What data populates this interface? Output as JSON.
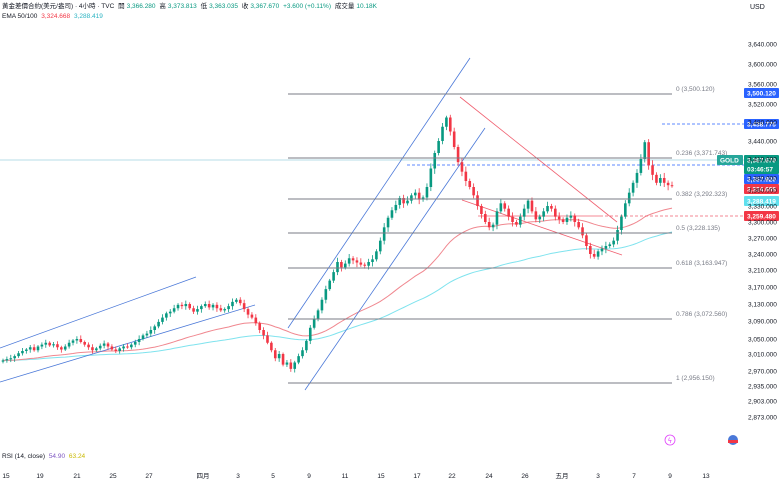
{
  "header": {
    "symbol_line": "黃金差價合約(美元/盎司) · 4小時 · TVC",
    "open_label": "開",
    "open_value": "3,366.280",
    "high_label": "高",
    "high_value": "3,373.813",
    "low_label": "低",
    "low_value": "3,363.035",
    "close_label": "收",
    "close_value": "3,367.670",
    "change": "+3.600 (+0.11%)",
    "volume_label": "成交量",
    "volume_value": "10.18K",
    "ema_label": "EMA 50/100",
    "ema50_value": "3,324.668",
    "ema100_value": "3,288.419"
  },
  "rsi": {
    "label": "RSI (14, close)",
    "value1": "54.90",
    "value2": "63.24"
  },
  "currency": "USD",
  "colors": {
    "up": "#089981",
    "down": "#f23645",
    "ema50": "#f0878f",
    "ema100": "#7fe3ee",
    "channel": "#4a78d8",
    "wedge": "#f06070",
    "fib": "#787b86"
  },
  "chart_data": {
    "type": "candlestick",
    "timeframe": "4h",
    "y_ticks": [
      "3,640.000",
      "3,600.000",
      "3,560.000",
      "3,520.000",
      "3,480.000",
      "3,440.000",
      "3,410.000",
      "3,380.000",
      "3,360.000",
      "3,330.000",
      "3,300.000",
      "3,270.000",
      "3,240.000",
      "3,210.000",
      "3,170.000",
      "3,130.000",
      "3,090.000",
      "3,050.000",
      "3,010.000",
      "2,970.000",
      "2,935.000",
      "2,903.000",
      "2,873.000"
    ],
    "x_ticks": [
      "15",
      "19",
      "21",
      "25",
      "27",
      "四月",
      "3",
      "5",
      "9",
      "11",
      "15",
      "17",
      "22",
      "24",
      "26",
      "五月",
      "3",
      "7",
      "9",
      "13"
    ],
    "price_tags": [
      {
        "label": "3,500.120",
        "value": 3500.12,
        "kind": "fib"
      },
      {
        "label": "3,438.775",
        "value": 3438.775,
        "kind": "blue"
      },
      {
        "label": "GOLD",
        "value": 3367.67,
        "kind": "symbol"
      },
      {
        "label": "3,367.670",
        "value": 3367.67,
        "kind": "price"
      },
      {
        "label": "03:46:57",
        "value": 3360,
        "kind": "timer"
      },
      {
        "label": "3,357.920",
        "value": 3357.92,
        "kind": "blue"
      },
      {
        "label": "3,324.668",
        "value": 3324.668,
        "kind": "ema50"
      },
      {
        "label": "3,288.419",
        "value": 3288.419,
        "kind": "ema100"
      },
      {
        "label": "3,259.480",
        "value": 3259.48,
        "kind": "red"
      }
    ],
    "fib_levels": [
      {
        "ratio": "0",
        "value": 3500.12,
        "label": "0 (3,500.120)"
      },
      {
        "ratio": "0.236",
        "value": 3371.743,
        "label": "0.236 (3,371.743)"
      },
      {
        "ratio": "0.382",
        "value": 3292.323,
        "label": "0.382 (3,292.323)"
      },
      {
        "ratio": "0.5",
        "value": 3228.135,
        "label": "0.5 (3,228.135)"
      },
      {
        "ratio": "0.618",
        "value": 3163.947,
        "label": "0.618 (3,163.947)"
      },
      {
        "ratio": "0.786",
        "value": 3072.56,
        "label": "0.786 (3,072.560)"
      },
      {
        "ratio": "1",
        "value": 2956.15,
        "label": "1 (2,956.150)"
      }
    ],
    "close_series": [
      2995,
      2998,
      3000,
      3005,
      3012,
      3018,
      3022,
      3028,
      3020,
      3030,
      3035,
      3040,
      3033,
      3036,
      3028,
      3022,
      3030,
      3040,
      3046,
      3050,
      3042,
      3035,
      3028,
      3020,
      3025,
      3032,
      3038,
      3030,
      3022,
      3018,
      3025,
      3030,
      3028,
      3035,
      3042,
      3050,
      3058,
      3062,
      3070,
      3078,
      3088,
      3098,
      3108,
      3112,
      3120,
      3128,
      3125,
      3130,
      3120,
      3112,
      3118,
      3125,
      3130,
      3122,
      3128,
      3120,
      3115,
      3118,
      3125,
      3135,
      3140,
      3132,
      3118,
      3105,
      3098,
      3085,
      3070,
      3058,
      3040,
      3020,
      3000,
      3010,
      2985,
      2990,
      2975,
      2990,
      3005,
      3020,
      3045,
      3075,
      3095,
      3115,
      3140,
      3165,
      3185,
      3205,
      3225,
      3215,
      3222,
      3232,
      3228,
      3224,
      3220,
      3218,
      3225,
      3230,
      3245,
      3265,
      3290,
      3308,
      3322,
      3332,
      3345,
      3335,
      3340,
      3350,
      3355,
      3342,
      3346,
      3365,
      3395,
      3420,
      3440,
      3470,
      3490,
      3460,
      3430,
      3405,
      3390,
      3375,
      3365,
      3350,
      3330,
      3315,
      3300,
      3290,
      3295,
      3320,
      3335,
      3325,
      3310,
      3300,
      3295,
      3310,
      3325,
      3340,
      3320,
      3305,
      3310,
      3320,
      3330,
      3325,
      3310,
      3305,
      3300,
      3308,
      3312,
      3300,
      3290,
      3275,
      3255,
      3240,
      3235,
      3245,
      3250,
      3255,
      3258,
      3265,
      3285,
      3310,
      3335,
      3355,
      3372,
      3388,
      3410,
      3438,
      3400,
      3385,
      3372,
      3380,
      3372,
      3368,
      3367.67
    ]
  }
}
